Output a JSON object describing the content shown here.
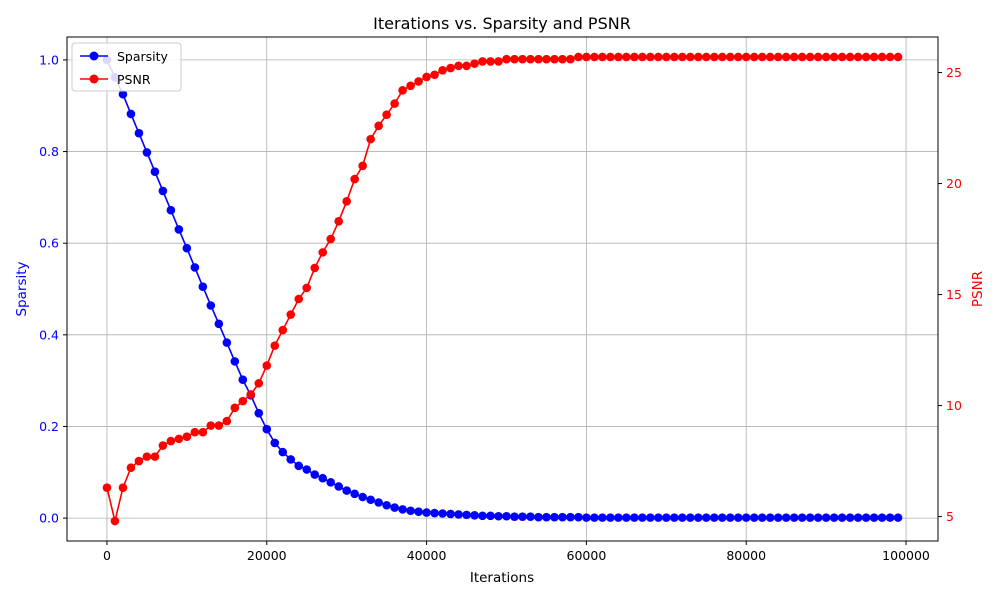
{
  "chart_data": {
    "type": "line",
    "title": "Iterations vs. Sparsity and PSNR",
    "xlabel": "Iterations",
    "ylabel_left": "Sparsity",
    "ylabel_right": "PSNR",
    "xlim": [
      -5000,
      104000
    ],
    "ylim_left": [
      -0.05,
      1.05
    ],
    "ylim_right": [
      3.9,
      26.6
    ],
    "x_ticks": [
      0,
      20000,
      40000,
      60000,
      80000,
      100000
    ],
    "y_ticks_left": [
      0.0,
      0.2,
      0.4,
      0.6,
      0.8,
      1.0
    ],
    "y_ticks_right": [
      5,
      10,
      15,
      20,
      25
    ],
    "x_tick_labels": [
      "0",
      "20000",
      "40000",
      "60000",
      "80000",
      "100000"
    ],
    "y_tick_labels_left": [
      "0.0",
      "0.2",
      "0.4",
      "0.6",
      "0.8",
      "1.0"
    ],
    "y_tick_labels_right": [
      "5",
      "10",
      "15",
      "20",
      "25"
    ],
    "grid": true,
    "legend_position": "top-left",
    "left_axis_color": "#0000ff",
    "right_axis_color": "#ff0000",
    "x": [
      0,
      1000,
      2000,
      3000,
      4000,
      5000,
      6000,
      7000,
      8000,
      9000,
      10000,
      11000,
      12000,
      13000,
      14000,
      15000,
      16000,
      17000,
      18000,
      19000,
      20000,
      21000,
      22000,
      23000,
      24000,
      25000,
      26000,
      27000,
      28000,
      29000,
      30000,
      31000,
      32000,
      33000,
      34000,
      35000,
      36000,
      37000,
      38000,
      39000,
      40000,
      41000,
      42000,
      43000,
      44000,
      45000,
      46000,
      47000,
      48000,
      49000,
      50000,
      51000,
      52000,
      53000,
      54000,
      55000,
      56000,
      57000,
      58000,
      59000,
      60000,
      61000,
      62000,
      63000,
      64000,
      65000,
      66000,
      67000,
      68000,
      69000,
      70000,
      71000,
      72000,
      73000,
      74000,
      75000,
      76000,
      77000,
      78000,
      79000,
      80000,
      81000,
      82000,
      83000,
      84000,
      85000,
      86000,
      87000,
      88000,
      89000,
      90000,
      91000,
      92000,
      93000,
      94000,
      95000,
      96000,
      97000,
      98000,
      99000
    ],
    "series": [
      {
        "name": "Sparsity",
        "axis": "left",
        "color": "#0000ff",
        "values": [
          1.0,
          0.962,
          0.925,
          0.882,
          0.84,
          0.798,
          0.756,
          0.714,
          0.672,
          0.63,
          0.589,
          0.547,
          0.505,
          0.464,
          0.424,
          0.383,
          0.342,
          0.302,
          0.268,
          0.229,
          0.194,
          0.164,
          0.144,
          0.128,
          0.114,
          0.106,
          0.095,
          0.087,
          0.078,
          0.069,
          0.06,
          0.053,
          0.046,
          0.04,
          0.034,
          0.028,
          0.023,
          0.019,
          0.016,
          0.014,
          0.012,
          0.011,
          0.01,
          0.009,
          0.008,
          0.007,
          0.006,
          0.005,
          0.005,
          0.004,
          0.004,
          0.003,
          0.003,
          0.003,
          0.002,
          0.002,
          0.002,
          0.002,
          0.002,
          0.002,
          0.001,
          0.001,
          0.001,
          0.001,
          0.001,
          0.001,
          0.001,
          0.001,
          0.001,
          0.001,
          0.001,
          0.001,
          0.001,
          0.001,
          0.001,
          0.001,
          0.001,
          0.001,
          0.001,
          0.001,
          0.001,
          0.001,
          0.001,
          0.001,
          0.001,
          0.001,
          0.001,
          0.001,
          0.001,
          0.001,
          0.001,
          0.001,
          0.001,
          0.001,
          0.001,
          0.001,
          0.001,
          0.001,
          0.001,
          0.001
        ]
      },
      {
        "name": "PSNR",
        "axis": "right",
        "color": "#ff0000",
        "values": [
          6.3,
          4.8,
          6.3,
          7.2,
          7.5,
          7.7,
          7.7,
          8.2,
          8.4,
          8.5,
          8.6,
          8.8,
          8.8,
          9.1,
          9.1,
          9.3,
          9.9,
          10.2,
          10.5,
          11.0,
          11.8,
          12.7,
          13.4,
          14.1,
          14.8,
          15.3,
          16.2,
          16.9,
          17.5,
          18.3,
          19.2,
          20.2,
          20.8,
          22.0,
          22.6,
          23.1,
          23.6,
          24.2,
          24.4,
          24.6,
          24.8,
          24.9,
          25.1,
          25.2,
          25.3,
          25.3,
          25.4,
          25.5,
          25.5,
          25.5,
          25.6,
          25.6,
          25.6,
          25.6,
          25.6,
          25.6,
          25.6,
          25.6,
          25.6,
          25.7,
          25.7,
          25.7,
          25.7,
          25.7,
          25.7,
          25.7,
          25.7,
          25.7,
          25.7,
          25.7,
          25.7,
          25.7,
          25.7,
          25.7,
          25.7,
          25.7,
          25.7,
          25.7,
          25.7,
          25.7,
          25.7,
          25.7,
          25.7,
          25.7,
          25.7,
          25.7,
          25.7,
          25.7,
          25.7,
          25.7,
          25.7,
          25.7,
          25.7,
          25.7,
          25.7,
          25.7,
          25.7,
          25.7,
          25.7,
          25.7
        ]
      }
    ]
  }
}
